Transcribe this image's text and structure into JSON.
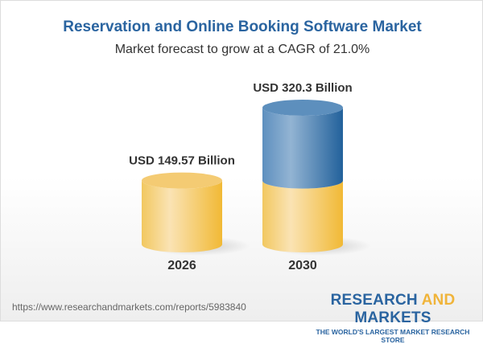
{
  "title": "Reservation and Online Booking Software Market",
  "subtitle": "Market forecast to grow at a CAGR of 21.0%",
  "chart_data": {
    "type": "bar",
    "style": "3d-cylinder",
    "categories": [
      "2026",
      "2030"
    ],
    "values": [
      149.57,
      320.3
    ],
    "data_labels": [
      "USD 149.57 Billion",
      "USD 320.3 Billion"
    ],
    "unit": "USD Billion",
    "colors": {
      "base": "#f3c45a",
      "growth": "#4a84b8"
    }
  },
  "footer": {
    "url": "https://www.researchandmarkets.com/reports/5983840",
    "logo_part1": "RESEARCH ",
    "logo_part2": "AND",
    "logo_part3": " MARKETS",
    "tagline": "THE WORLD'S LARGEST MARKET RESEARCH STORE"
  }
}
